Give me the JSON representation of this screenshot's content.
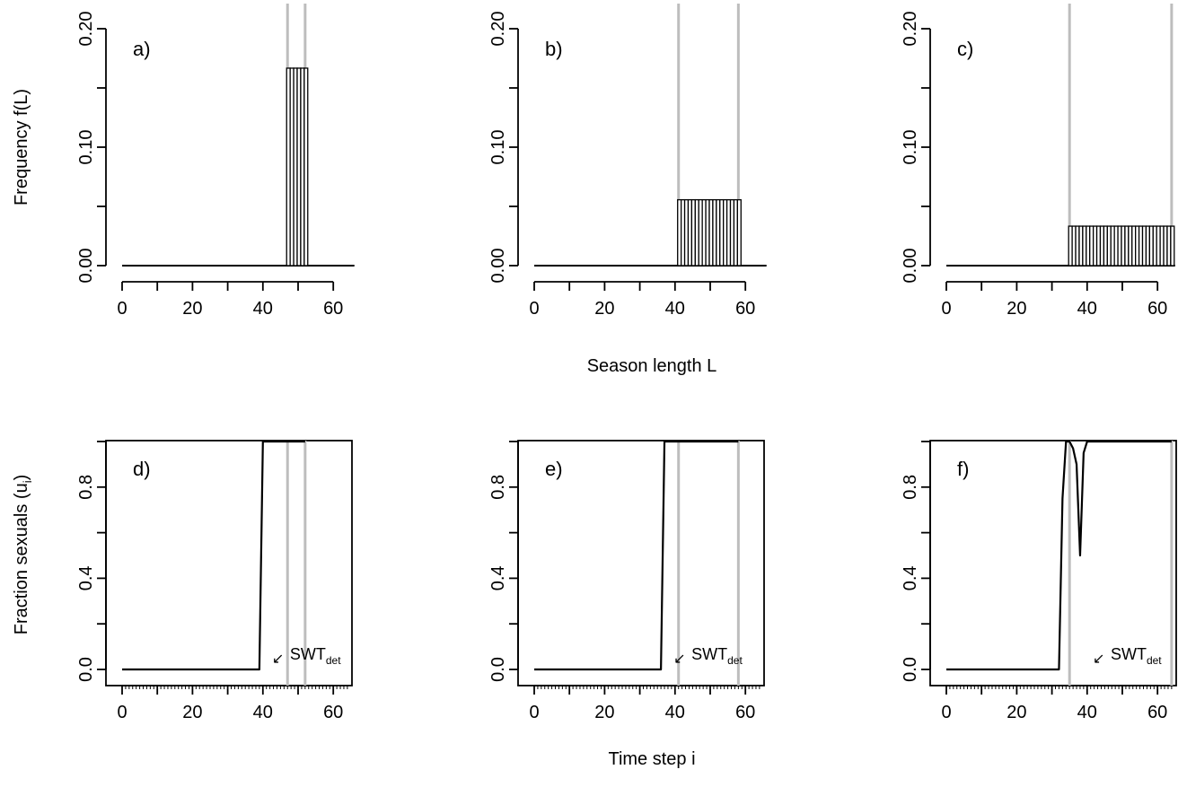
{
  "figure": {
    "top_xlabel": "Season length L",
    "top_ylabel": "Frequency f(L)",
    "bottom_xlabel": "Time step i",
    "bottom_ylabel_main": "Fraction sexuals (u",
    "bottom_ylabel_sub": "i",
    "bottom_ylabel_end": ")"
  },
  "colors": {
    "ink": "#000000",
    "guide": "#bdbdbd"
  },
  "chart_data": [
    {
      "type": "bar",
      "panel": "a)",
      "xlim": [
        0,
        65
      ],
      "ylim": [
        0,
        0.2
      ],
      "xticks": [
        0,
        20,
        40,
        60
      ],
      "yticks": [
        0.0,
        0.1,
        0.2
      ],
      "xtick_labels": [
        "0",
        "20",
        "40",
        "60"
      ],
      "ytick_labels": [
        "0.00",
        "0.10",
        "0.20"
      ],
      "minor_yticks": [
        0.05,
        0.15
      ],
      "minor_xticks": [
        10,
        30,
        50
      ],
      "bar_range": [
        47,
        52
      ],
      "bar_value": 0.1667,
      "baseline_range": [
        0,
        65
      ],
      "guides": [
        47,
        52
      ]
    },
    {
      "type": "bar",
      "panel": "b)",
      "xlim": [
        0,
        65
      ],
      "ylim": [
        0,
        0.2
      ],
      "xticks": [
        0,
        20,
        40,
        60
      ],
      "yticks": [
        0.0,
        0.1,
        0.2
      ],
      "xtick_labels": [
        "0",
        "20",
        "40",
        "60"
      ],
      "ytick_labels": [
        "0.00",
        "0.10",
        "0.20"
      ],
      "minor_yticks": [
        0.05,
        0.15
      ],
      "minor_xticks": [
        10,
        30,
        50
      ],
      "bar_range": [
        41,
        58
      ],
      "bar_value": 0.0556,
      "baseline_range": [
        0,
        65
      ],
      "guides": [
        41,
        58
      ]
    },
    {
      "type": "bar",
      "panel": "c)",
      "xlim": [
        0,
        65
      ],
      "ylim": [
        0,
        0.2
      ],
      "xticks": [
        0,
        20,
        40,
        60
      ],
      "yticks": [
        0.0,
        0.1,
        0.2
      ],
      "xtick_labels": [
        "0",
        "20",
        "40",
        "60"
      ],
      "ytick_labels": [
        "0.00",
        "0.10",
        "0.20"
      ],
      "minor_yticks": [
        0.05,
        0.15
      ],
      "minor_xticks": [
        10,
        30,
        50
      ],
      "bar_range": [
        35,
        64
      ],
      "bar_value": 0.0333,
      "baseline_range": [
        0,
        64
      ],
      "guides": [
        35,
        64
      ]
    },
    {
      "type": "line",
      "panel": "d)",
      "xlim": [
        0,
        65
      ],
      "ylim": [
        0,
        1
      ],
      "xticks": [
        0,
        20,
        40,
        60
      ],
      "yticks": [
        0.0,
        0.4,
        0.8
      ],
      "xtick_labels": [
        "0",
        "20",
        "40",
        "60"
      ],
      "ytick_labels": [
        "0.0",
        "0.4",
        "0.8"
      ],
      "minor_yticks": [
        0.2,
        0.6,
        1.0
      ],
      "minor_xticks": [
        10,
        30,
        50
      ],
      "series": [
        {
          "x": [
            0,
            39,
            40,
            52
          ],
          "y": [
            0,
            0,
            1,
            1
          ]
        }
      ],
      "guides": [
        47,
        52
      ],
      "annotation": {
        "arrow": "↙",
        "main": "SWT",
        "sub": "det",
        "x": 39,
        "y": 0.02
      }
    },
    {
      "type": "line",
      "panel": "e)",
      "xlim": [
        0,
        65
      ],
      "ylim": [
        0,
        1
      ],
      "xticks": [
        0,
        20,
        40,
        60
      ],
      "yticks": [
        0.0,
        0.4,
        0.8
      ],
      "xtick_labels": [
        "0",
        "20",
        "40",
        "60"
      ],
      "ytick_labels": [
        "0.0",
        "0.4",
        "0.8"
      ],
      "minor_yticks": [
        0.2,
        0.6,
        1.0
      ],
      "minor_xticks": [
        10,
        30,
        50
      ],
      "series": [
        {
          "x": [
            0,
            36,
            37,
            58
          ],
          "y": [
            0,
            0,
            1,
            1
          ]
        }
      ],
      "guides": [
        41,
        58
      ],
      "annotation": {
        "arrow": "↙",
        "main": "SWT",
        "sub": "det",
        "x": 36,
        "y": 0.02
      }
    },
    {
      "type": "line",
      "panel": "f)",
      "xlim": [
        0,
        65
      ],
      "ylim": [
        0,
        1
      ],
      "xticks": [
        0,
        20,
        40,
        60
      ],
      "yticks": [
        0.0,
        0.4,
        0.8
      ],
      "xtick_labels": [
        "0",
        "20",
        "40",
        "60"
      ],
      "ytick_labels": [
        "0.0",
        "0.4",
        "0.8"
      ],
      "minor_yticks": [
        0.2,
        0.6,
        1.0
      ],
      "minor_xticks": [
        10,
        30,
        50
      ],
      "series": [
        {
          "x": [
            0,
            32,
            33,
            34,
            35,
            36,
            37,
            38,
            39,
            40,
            64
          ],
          "y": [
            0,
            0,
            0.75,
            1,
            1,
            0.97,
            0.9,
            0.5,
            0.95,
            1,
            1
          ]
        }
      ],
      "guides": [
        35,
        64
      ],
      "annotation": {
        "arrow": "↙",
        "main": "SWT",
        "sub": "det",
        "x": 38,
        "y": 0.02
      }
    }
  ]
}
